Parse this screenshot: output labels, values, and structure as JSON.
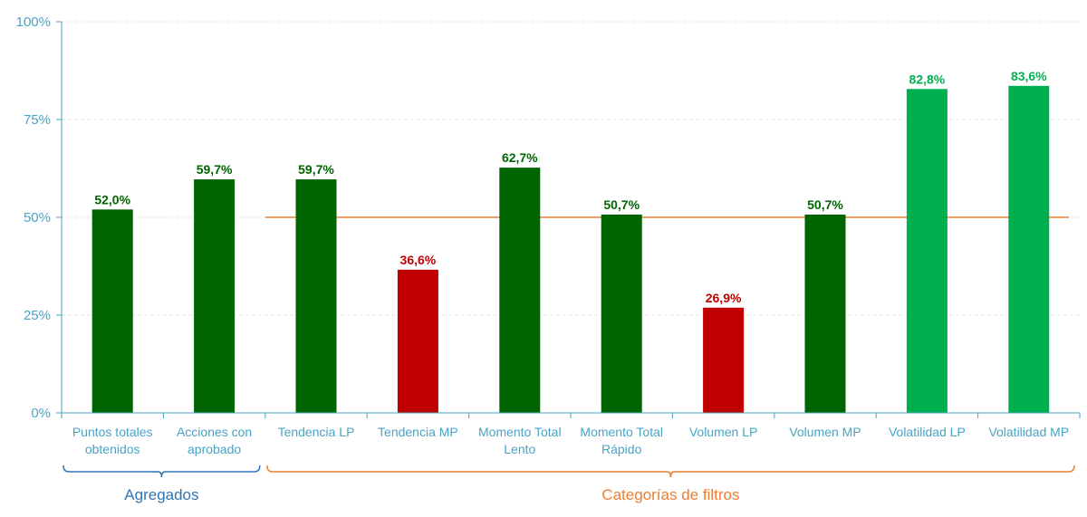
{
  "chart_data": {
    "type": "bar",
    "title": "",
    "xlabel": "",
    "ylabel": "",
    "ylim": [
      0,
      100
    ],
    "yticks": [
      0,
      25,
      50,
      75,
      100
    ],
    "ytick_labels": [
      "0%",
      "25%",
      "50%",
      "75%",
      "100%"
    ],
    "grid": true,
    "legend": "none",
    "categories": [
      [
        "Puntos totales",
        "obtenidos"
      ],
      [
        "Acciones con",
        "aprobado"
      ],
      [
        "Tendencia LP"
      ],
      [
        "Tendencia MP"
      ],
      [
        "Momento Total",
        "Lento"
      ],
      [
        "Momento Total",
        "Rápido"
      ],
      [
        "Volumen LP"
      ],
      [
        "Volumen MP"
      ],
      [
        "Volatilidad LP"
      ],
      [
        "Volatilidad MP"
      ]
    ],
    "values": [
      52.0,
      59.7,
      59.7,
      36.6,
      62.7,
      50.7,
      26.9,
      50.7,
      82.8,
      83.6
    ],
    "value_labels": [
      "52,0%",
      "59,7%",
      "59,7%",
      "36,6%",
      "62,7%",
      "50,7%",
      "26,9%",
      "50,7%",
      "82,8%",
      "83,6%"
    ],
    "bar_colors": [
      "#006400",
      "#006400",
      "#006400",
      "#c00000",
      "#006400",
      "#006400",
      "#c00000",
      "#006400",
      "#00b050",
      "#00b050"
    ],
    "label_colors": [
      "#006400",
      "#006400",
      "#006400",
      "#c00000",
      "#006400",
      "#006400",
      "#c00000",
      "#006400",
      "#00b050",
      "#00b050"
    ],
    "reference_line": {
      "value": 50,
      "from_category": 2,
      "to_category": 9,
      "color": "#ed7d31"
    },
    "groups": [
      {
        "label": "Agregados",
        "from_category": 0,
        "to_category": 1,
        "color": "#2e75b6"
      },
      {
        "label": "Categorías de filtros",
        "from_category": 2,
        "to_category": 9,
        "color": "#ed7d31"
      }
    ],
    "axis_color": "#4aa3c4",
    "grid_color": "#e6e6e6"
  }
}
